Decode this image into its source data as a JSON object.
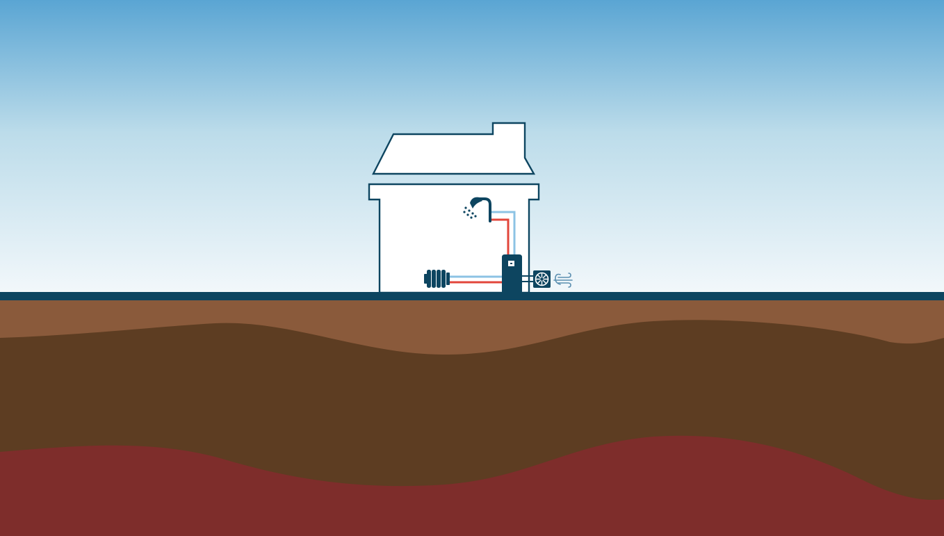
{
  "scene": {
    "kind": "air-source heat pump illustration",
    "colors": {
      "sky_top": "#5aa5d3",
      "sky_mid": "#bcdcea",
      "sky_bottom": "#f3f8fb",
      "ground_line": "#0d4560",
      "soil_top": "#8a5a3b",
      "soil_middle": "#5d3d22",
      "soil_bottom": "#7e2d2b",
      "house_fill": "#ffffff",
      "house_outline": "#0d4560",
      "hot_pipe": "#e2463b",
      "cold_pipe": "#8cc3e4",
      "equipment": "#0d4560",
      "wind_lines": "#5b8fb0"
    },
    "elements": {
      "house": "house-icon",
      "shower": "shower-icon",
      "radiator": "radiator-icon",
      "cylinder": "hot-water-cylinder-icon",
      "outdoor_unit": "fan-icon",
      "air_flow": "wind-icon"
    }
  }
}
